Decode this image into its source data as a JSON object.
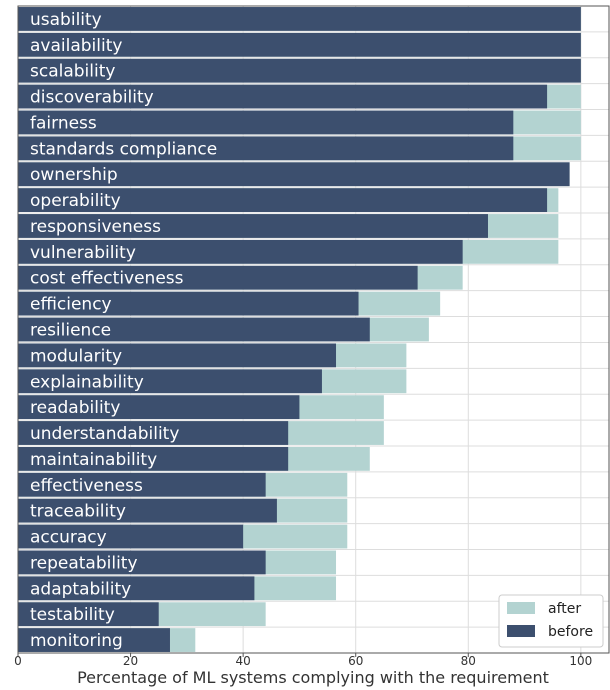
{
  "chart_data": {
    "type": "bar",
    "orientation": "horizontal",
    "stacked": false,
    "categories": [
      "usability",
      "availability",
      "scalability",
      "discoverability",
      "fairness",
      "standards compliance",
      "ownership",
      "operability",
      "responsiveness",
      "vulnerability",
      "cost effectiveness",
      "efficiency",
      "resilience",
      "modularity",
      "explainability",
      "readability",
      "understandability",
      "maintainability",
      "effectiveness",
      "traceability",
      "accuracy",
      "repeatability",
      "adaptability",
      "testability",
      "monitoring"
    ],
    "series": [
      {
        "name": "after",
        "color": "#b3d3d1",
        "values": [
          100,
          100,
          100,
          100,
          100,
          100,
          98,
          96,
          96,
          96,
          79,
          75,
          73,
          69,
          69,
          65,
          65,
          62.5,
          58.5,
          58.5,
          58.5,
          56.5,
          56.5,
          44,
          31.5
        ]
      },
      {
        "name": "before",
        "color": "#3c4f6e",
        "values": [
          100,
          100,
          100,
          94,
          88,
          88,
          98,
          94,
          83.5,
          79,
          71,
          60.5,
          62.5,
          56.5,
          54,
          50,
          48,
          48,
          44,
          46,
          40,
          44,
          42,
          25,
          27
        ]
      }
    ],
    "xlabel": "Percentage of ML systems complying with the requirement",
    "ylabel": "",
    "xlim": [
      0,
      105
    ],
    "xticks": [
      "0",
      "20",
      "40",
      "60",
      "80",
      "100"
    ],
    "grid": true,
    "legend_position": "bottom-right"
  }
}
